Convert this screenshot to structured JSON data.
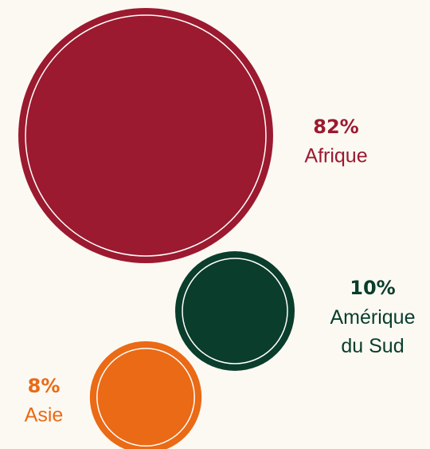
{
  "chart_data": {
    "type": "bubble",
    "categories": [
      "Afrique",
      "Amérique du Sud",
      "Asie"
    ],
    "values": [
      82,
      10,
      8
    ],
    "value_labels": [
      "82%",
      "10%",
      "8%"
    ],
    "colors": [
      "#9b1a2f",
      "#0a3d2c",
      "#ea6a16"
    ]
  }
}
